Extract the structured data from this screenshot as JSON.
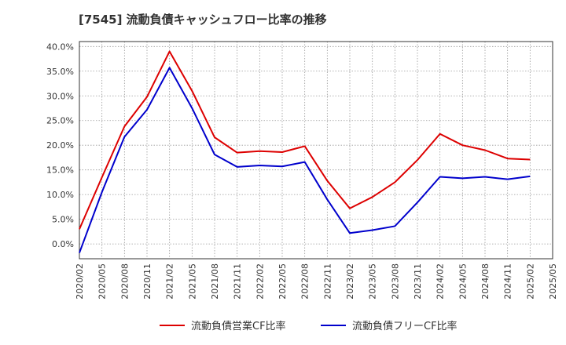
{
  "chart_data": {
    "type": "line",
    "title": "[7545]  流動負債キャッシュフロー比率の推移",
    "xlabel": "",
    "ylabel": "",
    "ylim": [
      -0.03,
      0.41
    ],
    "yticks": [
      0.0,
      0.05,
      0.1,
      0.15,
      0.2,
      0.25,
      0.3,
      0.35,
      0.4
    ],
    "ytick_labels": [
      "0.0%",
      "5.0%",
      "10.0%",
      "15.0%",
      "20.0%",
      "25.0%",
      "30.0%",
      "35.0%",
      "40.0%"
    ],
    "x_tick_labels": [
      "2020/02",
      "2020/05",
      "2020/08",
      "2020/11",
      "2021/02",
      "2021/05",
      "2021/08",
      "2021/11",
      "2022/02",
      "2022/05",
      "2022/08",
      "2022/11",
      "2023/02",
      "2023/05",
      "2023/08",
      "2023/11",
      "2024/02",
      "2024/05",
      "2024/08",
      "2024/11",
      "2025/02",
      "2025/05"
    ],
    "grid": true,
    "legend_position": "bottom",
    "series": [
      {
        "name": "流動負債営業CF比率",
        "color": "#dd0000",
        "values": [
          0.03,
          0.135,
          0.238,
          0.298,
          0.39,
          0.31,
          0.216,
          0.185,
          0.188,
          0.186,
          0.198,
          0.128,
          0.072,
          0.095,
          0.125,
          0.17,
          0.223,
          0.2,
          0.19,
          0.173,
          0.171
        ]
      },
      {
        "name": "流動負債フリーCF比率",
        "color": "#0000cc",
        "values": [
          -0.018,
          0.105,
          0.217,
          0.272,
          0.357,
          0.275,
          0.181,
          0.156,
          0.159,
          0.157,
          0.166,
          0.09,
          0.022,
          0.028,
          0.036,
          0.084,
          0.136,
          0.133,
          0.136,
          0.131,
          0.137
        ]
      }
    ]
  }
}
